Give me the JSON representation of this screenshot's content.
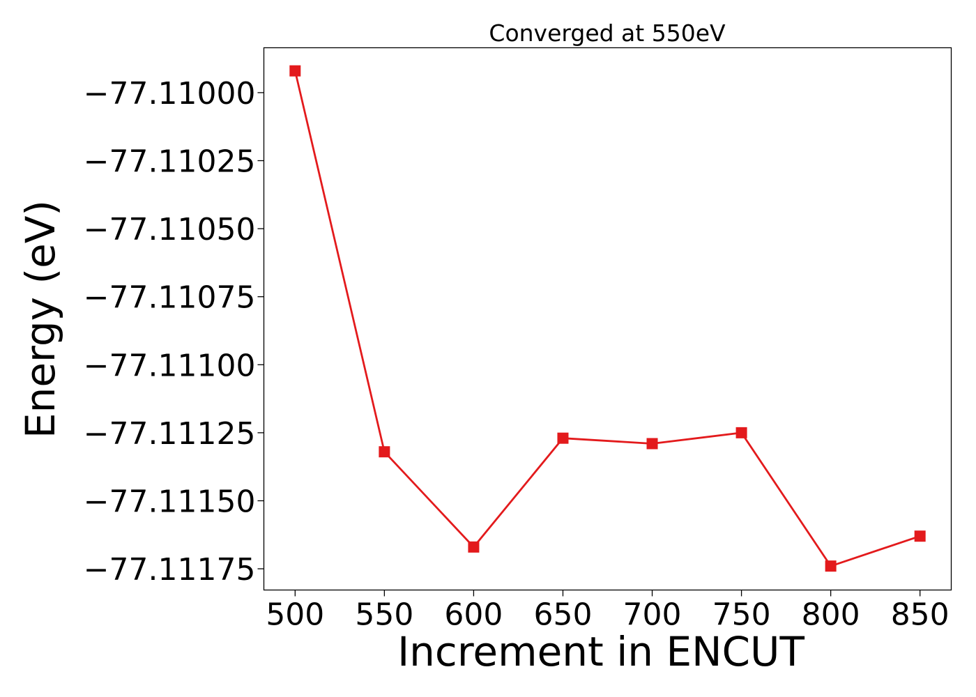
{
  "chart_data": {
    "type": "line",
    "title": "Converged at 550eV",
    "xlabel": "Increment in ENCUT",
    "ylabel": "Energy (eV)",
    "x": [
      500,
      550,
      600,
      650,
      700,
      750,
      800,
      850
    ],
    "series": [
      {
        "values": [
          -77.10992,
          -77.11132,
          -77.11167,
          -77.11127,
          -77.11129,
          -77.11125,
          -77.11174,
          -77.11163
        ],
        "color": "#e31a1c",
        "marker": "square"
      }
    ],
    "xticks": [
      "500",
      "550",
      "600",
      "650",
      "700",
      "750",
      "800",
      "850"
    ],
    "xtick_values": [
      500,
      550,
      600,
      650,
      700,
      750,
      800,
      850
    ],
    "yticks": [
      "−77.11000",
      "−77.11025",
      "−77.11050",
      "−77.11075",
      "−77.11100",
      "−77.11125",
      "−77.11150",
      "−77.11175"
    ],
    "ytick_values": [
      -77.11,
      -77.11025,
      -77.1105,
      -77.11075,
      -77.111,
      -77.11125,
      -77.1115,
      -77.11175
    ],
    "xlim": [
      482.5,
      867.5
    ],
    "ylim": [
      -77.111828,
      -77.109835
    ],
    "grid": false,
    "legend": "none"
  }
}
